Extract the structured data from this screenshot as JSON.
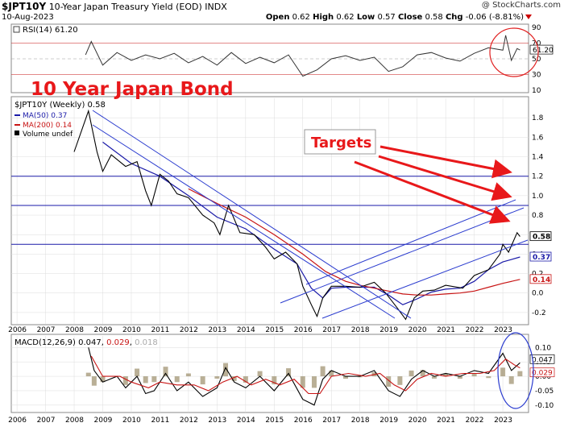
{
  "header": {
    "symbol": "$JPT10Y",
    "name": "10-Year Japan Treasury Yield (EOD)",
    "exchange": "INDX",
    "credit": "@ StockCharts.com",
    "date": "10-Aug-2023",
    "open_label": "Open",
    "open": "0.62",
    "high_label": "High",
    "high": "0.62",
    "low_label": "Low",
    "low": "0.57",
    "close_label": "Close",
    "close": "0.58",
    "chg_label": "Chg",
    "chg": "-0.06 (-8.81%)"
  },
  "annotations": {
    "title": "10 Year Japan Bond",
    "targets": "Targets"
  },
  "colors": {
    "price": "#000000",
    "ma50": "#1a1aa8",
    "ma200": "#c81414",
    "trend_line": "#2b3ccf",
    "target_arrow": "#e8181a",
    "grid": "#d8d8d8",
    "annotation_text": "#e8181a",
    "circle": "#e02020",
    "macd_circle": "#2b3ccf",
    "histogram": "#8a7a50"
  },
  "chart_data": [
    {
      "type": "line",
      "panel": "RSI",
      "title": "RSI(14)",
      "last_value": 61.2,
      "last_label": "61.20",
      "ylim": [
        10,
        90
      ],
      "ytick_labels": [
        "90",
        "70",
        "50",
        "30",
        "10"
      ],
      "overbought": 70,
      "oversold": 30,
      "x_range": [
        2008.4,
        2023.6
      ],
      "points": [
        [
          2008.4,
          55
        ],
        [
          2008.6,
          72
        ],
        [
          2009.0,
          42
        ],
        [
          2009.5,
          58
        ],
        [
          2010.0,
          48
        ],
        [
          2010.5,
          55
        ],
        [
          2011.0,
          50
        ],
        [
          2011.5,
          57
        ],
        [
          2012.0,
          45
        ],
        [
          2012.5,
          53
        ],
        [
          2013.0,
          42
        ],
        [
          2013.5,
          58
        ],
        [
          2014.0,
          44
        ],
        [
          2014.5,
          52
        ],
        [
          2015.0,
          45
        ],
        [
          2015.5,
          55
        ],
        [
          2016.0,
          28
        ],
        [
          2016.5,
          36
        ],
        [
          2017.0,
          50
        ],
        [
          2017.5,
          54
        ],
        [
          2018.0,
          48
        ],
        [
          2018.5,
          52
        ],
        [
          2019.0,
          34
        ],
        [
          2019.5,
          40
        ],
        [
          2020.0,
          55
        ],
        [
          2020.5,
          58
        ],
        [
          2021.0,
          51
        ],
        [
          2021.5,
          47
        ],
        [
          2022.0,
          57
        ],
        [
          2022.5,
          64
        ],
        [
          2023.0,
          61
        ],
        [
          2023.1,
          80
        ],
        [
          2023.3,
          48
        ],
        [
          2023.5,
          63
        ],
        [
          2023.6,
          61.2
        ]
      ]
    },
    {
      "type": "line",
      "panel": "price",
      "title": "$JPT10Y (Weekly) 0.58",
      "series": [
        {
          "name": "MA(50) 0.37",
          "color": "#1a1aa8",
          "points": [
            [
              2009.0,
              1.55
            ],
            [
              2010.0,
              1.33
            ],
            [
              2011.0,
              1.2
            ],
            [
              2012.0,
              1.0
            ],
            [
              2013.0,
              0.78
            ],
            [
              2014.0,
              0.66
            ],
            [
              2015.0,
              0.45
            ],
            [
              2015.8,
              0.3
            ],
            [
              2016.3,
              0.05
            ],
            [
              2016.7,
              -0.05
            ],
            [
              2017.0,
              0.05
            ],
            [
              2017.5,
              0.06
            ],
            [
              2018.0,
              0.06
            ],
            [
              2018.5,
              0.06
            ],
            [
              2019.0,
              -0.02
            ],
            [
              2019.5,
              -0.12
            ],
            [
              2020.0,
              -0.06
            ],
            [
              2020.5,
              0.01
            ],
            [
              2021.0,
              0.04
            ],
            [
              2021.5,
              0.05
            ],
            [
              2022.0,
              0.12
            ],
            [
              2022.5,
              0.24
            ],
            [
              2023.0,
              0.32
            ],
            [
              2023.6,
              0.37
            ]
          ]
        },
        {
          "name": "MA(200) 0.14",
          "color": "#c81414",
          "points": [
            [
              2012.0,
              1.07
            ],
            [
              2013.0,
              0.92
            ],
            [
              2014.0,
              0.78
            ],
            [
              2015.0,
              0.6
            ],
            [
              2016.0,
              0.4
            ],
            [
              2016.8,
              0.22
            ],
            [
              2017.5,
              0.12
            ],
            [
              2018.0,
              0.08
            ],
            [
              2018.5,
              0.05
            ],
            [
              2019.0,
              0.02
            ],
            [
              2019.5,
              -0.01
            ],
            [
              2020.0,
              -0.02
            ],
            [
              2020.5,
              -0.02
            ],
            [
              2021.0,
              -0.01
            ],
            [
              2021.5,
              0.0
            ],
            [
              2022.0,
              0.02
            ],
            [
              2022.5,
              0.06
            ],
            [
              2023.0,
              0.1
            ],
            [
              2023.6,
              0.14
            ]
          ]
        },
        {
          "name": "Volume undef",
          "color": "#000000",
          "points": []
        }
      ],
      "price_points": [
        [
          2008.0,
          1.45
        ],
        [
          2008.5,
          1.87
        ],
        [
          2008.8,
          1.45
        ],
        [
          2009.0,
          1.25
        ],
        [
          2009.3,
          1.42
        ],
        [
          2009.8,
          1.3
        ],
        [
          2010.2,
          1.35
        ],
        [
          2010.5,
          1.05
        ],
        [
          2010.7,
          0.9
        ],
        [
          2011.0,
          1.22
        ],
        [
          2011.3,
          1.15
        ],
        [
          2011.6,
          1.02
        ],
        [
          2012.0,
          0.98
        ],
        [
          2012.5,
          0.8
        ],
        [
          2012.9,
          0.72
        ],
        [
          2013.1,
          0.6
        ],
        [
          2013.4,
          0.9
        ],
        [
          2013.8,
          0.62
        ],
        [
          2014.3,
          0.6
        ],
        [
          2014.7,
          0.47
        ],
        [
          2015.0,
          0.35
        ],
        [
          2015.4,
          0.42
        ],
        [
          2015.8,
          0.3
        ],
        [
          2016.0,
          0.07
        ],
        [
          2016.3,
          -0.12
        ],
        [
          2016.5,
          -0.24
        ],
        [
          2016.7,
          -0.05
        ],
        [
          2017.0,
          0.07
        ],
        [
          2017.5,
          0.07
        ],
        [
          2018.0,
          0.06
        ],
        [
          2018.5,
          0.11
        ],
        [
          2018.9,
          0.0
        ],
        [
          2019.3,
          -0.15
        ],
        [
          2019.6,
          -0.27
        ],
        [
          2019.9,
          -0.05
        ],
        [
          2020.2,
          0.02
        ],
        [
          2020.6,
          0.03
        ],
        [
          2021.0,
          0.08
        ],
        [
          2021.6,
          0.05
        ],
        [
          2022.0,
          0.18
        ],
        [
          2022.5,
          0.24
        ],
        [
          2022.9,
          0.4
        ],
        [
          2023.0,
          0.5
        ],
        [
          2023.2,
          0.42
        ],
        [
          2023.5,
          0.62
        ],
        [
          2023.6,
          0.58
        ]
      ],
      "ylim": [
        -0.3,
        2.0
      ],
      "ytick_labels": [
        "1.8",
        "1.6",
        "1.4",
        "1.2",
        "1.0",
        "0.8",
        "0.6",
        "0.4",
        "0.2",
        "0.0",
        "-0.2"
      ],
      "horizontal_levels": [
        1.2,
        0.9,
        0.5
      ],
      "value_tags": [
        {
          "label": "0.58",
          "value": 0.58,
          "color": "#000000"
        },
        {
          "label": "0.37",
          "value": 0.37,
          "color": "#1a1aa8"
        },
        {
          "label": "0.14",
          "value": 0.14,
          "color": "#c81414"
        }
      ],
      "x_range": [
        2005.8,
        2023.9
      ],
      "xtick_labels": [
        "2006",
        "2007",
        "2008",
        "2009",
        "2010",
        "2011",
        "2012",
        "2013",
        "2014",
        "2015",
        "2016",
        "2017",
        "2018",
        "2019",
        "2020",
        "2021",
        "2022",
        "2023"
      ],
      "grid": true
    },
    {
      "type": "line",
      "panel": "MACD",
      "title": "MACD(12,26,9)",
      "values_text": [
        "0.047",
        "0.029",
        "0.018"
      ],
      "ylim": [
        -0.12,
        0.14
      ],
      "ytick_labels": [
        "0.10",
        "0.05",
        "0.00",
        "-0.05",
        "-0.10"
      ],
      "tag_labels": [
        "0.047",
        "0.029"
      ],
      "series": [
        {
          "name": "MACD",
          "color": "#000000",
          "points": [
            [
              2008.5,
              0.1
            ],
            [
              2008.7,
              0.02
            ],
            [
              2009.0,
              -0.02
            ],
            [
              2009.5,
              0.0
            ],
            [
              2009.8,
              -0.04
            ],
            [
              2010.2,
              0.0
            ],
            [
              2010.5,
              -0.06
            ],
            [
              2010.8,
              -0.05
            ],
            [
              2011.2,
              0.01
            ],
            [
              2011.6,
              -0.05
            ],
            [
              2012.0,
              -0.02
            ],
            [
              2012.5,
              -0.07
            ],
            [
              2013.0,
              -0.04
            ],
            [
              2013.3,
              0.03
            ],
            [
              2013.6,
              -0.02
            ],
            [
              2014.0,
              -0.04
            ],
            [
              2014.5,
              0.0
            ],
            [
              2015.0,
              -0.05
            ],
            [
              2015.5,
              0.01
            ],
            [
              2016.0,
              -0.08
            ],
            [
              2016.4,
              -0.1
            ],
            [
              2016.7,
              -0.01
            ],
            [
              2017.0,
              0.02
            ],
            [
              2017.5,
              0.0
            ],
            [
              2018.0,
              0.0
            ],
            [
              2018.5,
              0.02
            ],
            [
              2019.0,
              -0.05
            ],
            [
              2019.4,
              -0.07
            ],
            [
              2019.8,
              -0.01
            ],
            [
              2020.2,
              0.02
            ],
            [
              2020.6,
              0.0
            ],
            [
              2021.0,
              0.01
            ],
            [
              2021.5,
              0.0
            ],
            [
              2022.0,
              0.02
            ],
            [
              2022.5,
              0.01
            ],
            [
              2023.0,
              0.08
            ],
            [
              2023.3,
              0.02
            ],
            [
              2023.6,
              0.047
            ]
          ]
        },
        {
          "name": "Signal",
          "color": "#c81414",
          "points": [
            [
              2008.6,
              0.07
            ],
            [
              2009.0,
              0.0
            ],
            [
              2009.6,
              0.0
            ],
            [
              2010.0,
              -0.02
            ],
            [
              2010.6,
              -0.04
            ],
            [
              2011.0,
              -0.02
            ],
            [
              2011.6,
              -0.03
            ],
            [
              2012.2,
              -0.03
            ],
            [
              2012.7,
              -0.05
            ],
            [
              2013.2,
              -0.02
            ],
            [
              2013.7,
              0.0
            ],
            [
              2014.2,
              -0.03
            ],
            [
              2014.7,
              -0.01
            ],
            [
              2015.2,
              -0.03
            ],
            [
              2015.7,
              -0.01
            ],
            [
              2016.2,
              -0.06
            ],
            [
              2016.6,
              -0.06
            ],
            [
              2017.0,
              0.0
            ],
            [
              2017.6,
              0.01
            ],
            [
              2018.2,
              0.0
            ],
            [
              2018.7,
              0.01
            ],
            [
              2019.2,
              -0.03
            ],
            [
              2019.6,
              -0.05
            ],
            [
              2020.0,
              -0.01
            ],
            [
              2020.5,
              0.01
            ],
            [
              2021.0,
              0.0
            ],
            [
              2021.6,
              0.01
            ],
            [
              2022.2,
              0.01
            ],
            [
              2022.7,
              0.02
            ],
            [
              2023.1,
              0.06
            ],
            [
              2023.4,
              0.04
            ],
            [
              2023.6,
              0.029
            ]
          ]
        }
      ],
      "x_range": [
        2005.8,
        2023.9
      ],
      "xtick_labels": [
        "2006",
        "2007",
        "2008",
        "2009",
        "2010",
        "2011",
        "2012",
        "2013",
        "2014",
        "2015",
        "2016",
        "2017",
        "2018",
        "2019",
        "2020",
        "2021",
        "2022",
        "2023"
      ]
    }
  ]
}
